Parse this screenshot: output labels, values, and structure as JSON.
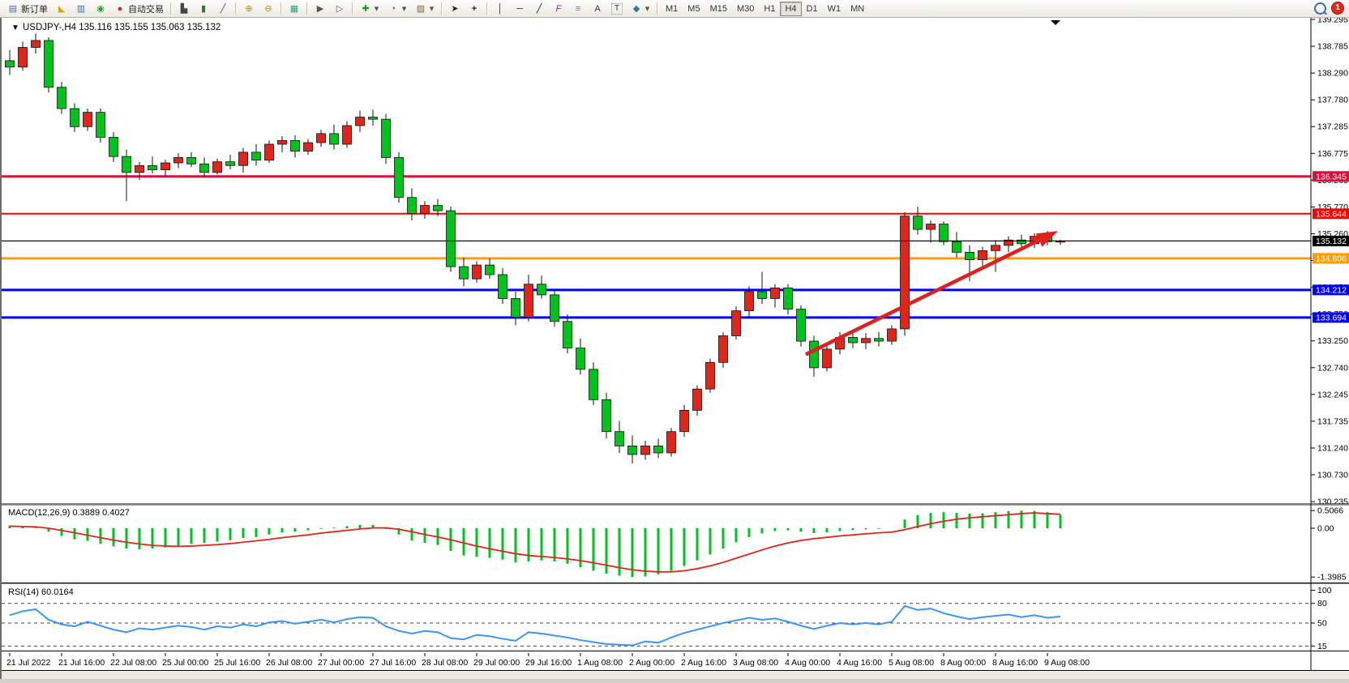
{
  "toolbar": {
    "new_order_label": "新订单",
    "autotrade_label": "自动交易",
    "timeframes": [
      "M1",
      "M5",
      "M15",
      "M30",
      "H1",
      "H4",
      "D1",
      "W1",
      "MN"
    ],
    "active_timeframe": "H4",
    "icons": {
      "new_order": "▤",
      "sound": "◣",
      "market_watch": "▥",
      "signal": "◉",
      "autotrade": "●",
      "chart_bars": "▙",
      "chart_candles": "▮",
      "chart_line": "╱",
      "zoom_in": "⊕",
      "zoom_out": "⊖",
      "tile_windows": "▦",
      "scroll_end": "▶",
      "chart_shift": "▷",
      "add_indicator": "✚",
      "period_menu": "◔",
      "template_menu": "▨",
      "cursor": "➤",
      "crosshair": "+",
      "vline": "│",
      "hline": "─",
      "trendline": "╱",
      "fibo": "F",
      "channels": "≡",
      "text": "A",
      "label": "T",
      "shapes_menu": "◆",
      "dropdown": "▾",
      "notify_badge": "1"
    }
  },
  "chart": {
    "title_symbol": "USDJPY-,H4",
    "title_ohlc": "135.116 135.155 135.063 135.132",
    "collapse_glyph": "▼"
  },
  "indicators": {
    "macd": {
      "label": "MACD(12,26,9)",
      "values": "0.3889 0.4027",
      "axis_ticks": [
        "0.5066",
        "0.00",
        "-1.3985"
      ]
    },
    "rsi": {
      "label": "RSI(14)",
      "value": "60.0164",
      "axis_ticks": [
        "100",
        "80",
        "50",
        "15"
      ],
      "levels": [
        80,
        50,
        15
      ]
    }
  },
  "chart_data": {
    "type": "candlestick",
    "symbol": "USDJPY-",
    "timeframe": "H4",
    "last_quote": {
      "open": 135.116,
      "high": 135.155,
      "low": 135.063,
      "close": 135.132
    },
    "price_axis_ticks": [
      139.295,
      138.785,
      138.29,
      137.78,
      137.285,
      136.775,
      136.265,
      135.77,
      135.26,
      134.765,
      134.25,
      133.75,
      133.25,
      132.74,
      132.245,
      131.735,
      131.24,
      130.73,
      130.235
    ],
    "price_range": [
      130.235,
      139.295
    ],
    "x_labels": [
      "21 Jul 2022",
      "21 Jul 16:00",
      "22 Jul 08:00",
      "25 Jul 00:00",
      "25 Jul 16:00",
      "26 Jul 08:00",
      "27 Jul 00:00",
      "27 Jul 16:00",
      "28 Jul 08:00",
      "29 Jul 00:00",
      "29 Jul 16:00",
      "1 Aug 08:00",
      "2 Aug 00:00",
      "2 Aug 16:00",
      "3 Aug 08:00",
      "4 Aug 00:00",
      "4 Aug 16:00",
      "5 Aug 08:00",
      "8 Aug 00:00",
      "8 Aug 16:00",
      "9 Aug 08:00"
    ],
    "x_label_every_n_candles": 4,
    "colors": {
      "bull": "#e1251b",
      "bear": "#00c41b",
      "outline": "#111111",
      "macd_hist": "#00c41b",
      "macd_signal": "#e1251b",
      "rsi_line": "#3b97f3",
      "arrow": "#e01f1f"
    },
    "hlines": [
      {
        "price": 136.345,
        "color": "#d8103f",
        "width": 3,
        "label": "136.345"
      },
      {
        "price": 135.644,
        "color": "#ff0000",
        "width": 2,
        "label": "135.644"
      },
      {
        "price": 135.132,
        "color": "#000000",
        "width": 1,
        "label": "135.132"
      },
      {
        "price": 134.806,
        "color": "#ff9d00",
        "width": 3,
        "label": "134.806"
      },
      {
        "price": 134.212,
        "color": "#0000ff",
        "width": 3,
        "label": "134.212"
      },
      {
        "price": 133.694,
        "color": "#0000ff",
        "width": 3,
        "label": "133.694"
      }
    ],
    "trend_arrow": {
      "from_price": 133.0,
      "from_candle": 62,
      "to_price": 135.32,
      "to_candle": 81
    },
    "candles": [
      [
        138.52,
        138.72,
        138.25,
        138.4
      ],
      [
        138.4,
        138.88,
        138.33,
        138.77
      ],
      [
        138.77,
        139.03,
        138.65,
        138.9
      ],
      [
        138.9,
        138.96,
        137.92,
        138.02
      ],
      [
        138.02,
        138.12,
        137.52,
        137.62
      ],
      [
        137.62,
        137.72,
        137.18,
        137.28
      ],
      [
        137.28,
        137.62,
        137.2,
        137.55
      ],
      [
        137.55,
        137.62,
        136.98,
        137.08
      ],
      [
        137.08,
        137.18,
        136.62,
        136.72
      ],
      [
        136.72,
        136.85,
        135.88,
        136.42
      ],
      [
        136.42,
        136.62,
        136.28,
        136.55
      ],
      [
        136.55,
        136.72,
        136.4,
        136.47
      ],
      [
        136.47,
        136.66,
        136.35,
        136.6
      ],
      [
        136.6,
        136.78,
        136.5,
        136.7
      ],
      [
        136.7,
        136.8,
        136.52,
        136.58
      ],
      [
        136.58,
        136.7,
        136.34,
        136.42
      ],
      [
        136.42,
        136.68,
        136.38,
        136.62
      ],
      [
        136.62,
        136.75,
        136.48,
        136.55
      ],
      [
        136.55,
        136.88,
        136.42,
        136.8
      ],
      [
        136.8,
        136.95,
        136.55,
        136.65
      ],
      [
        136.65,
        137.02,
        136.6,
        136.95
      ],
      [
        136.95,
        137.1,
        136.8,
        137.02
      ],
      [
        137.02,
        137.12,
        136.7,
        136.82
      ],
      [
        136.82,
        137.05,
        136.75,
        136.98
      ],
      [
        136.98,
        137.22,
        136.9,
        137.15
      ],
      [
        137.15,
        137.32,
        136.85,
        136.95
      ],
      [
        136.95,
        137.38,
        136.88,
        137.3
      ],
      [
        137.3,
        137.58,
        137.18,
        137.46
      ],
      [
        137.46,
        137.6,
        137.3,
        137.42
      ],
      [
        137.42,
        137.52,
        136.58,
        136.7
      ],
      [
        136.7,
        136.8,
        135.85,
        135.95
      ],
      [
        135.95,
        136.12,
        135.52,
        135.65
      ],
      [
        135.65,
        135.88,
        135.55,
        135.8
      ],
      [
        135.8,
        135.92,
        135.6,
        135.7
      ],
      [
        135.7,
        135.78,
        134.55,
        134.65
      ],
      [
        134.65,
        134.82,
        134.28,
        134.42
      ],
      [
        134.42,
        134.75,
        134.35,
        134.68
      ],
      [
        134.68,
        134.8,
        134.42,
        134.5
      ],
      [
        134.5,
        134.62,
        133.95,
        134.05
      ],
      [
        134.05,
        134.18,
        133.55,
        133.7
      ],
      [
        133.7,
        134.5,
        133.62,
        134.32
      ],
      [
        134.32,
        134.48,
        134.05,
        134.12
      ],
      [
        134.12,
        134.22,
        133.52,
        133.62
      ],
      [
        133.62,
        133.75,
        133.02,
        133.12
      ],
      [
        133.12,
        133.3,
        132.62,
        132.72
      ],
      [
        132.72,
        132.85,
        132.05,
        132.15
      ],
      [
        132.15,
        132.28,
        131.42,
        131.55
      ],
      [
        131.55,
        131.75,
        131.15,
        131.28
      ],
      [
        131.28,
        131.48,
        130.95,
        131.12
      ],
      [
        131.12,
        131.38,
        131.02,
        131.28
      ],
      [
        131.28,
        131.42,
        131.05,
        131.15
      ],
      [
        131.15,
        131.62,
        131.08,
        131.55
      ],
      [
        131.55,
        132.05,
        131.45,
        131.95
      ],
      [
        131.95,
        132.42,
        131.85,
        132.35
      ],
      [
        132.35,
        132.92,
        132.28,
        132.85
      ],
      [
        132.85,
        133.42,
        132.75,
        133.35
      ],
      [
        133.35,
        133.9,
        133.28,
        133.82
      ],
      [
        133.82,
        134.28,
        133.7,
        134.18
      ],
      [
        134.18,
        134.55,
        133.95,
        134.05
      ],
      [
        134.05,
        134.32,
        133.88,
        134.25
      ],
      [
        134.25,
        134.32,
        133.75,
        133.85
      ],
      [
        133.85,
        133.92,
        133.15,
        133.25
      ],
      [
        133.25,
        133.35,
        132.58,
        132.75
      ],
      [
        132.75,
        133.2,
        132.68,
        133.1
      ],
      [
        133.1,
        133.42,
        133.0,
        133.32
      ],
      [
        133.32,
        133.45,
        133.12,
        133.22
      ],
      [
        133.22,
        133.4,
        133.1,
        133.3
      ],
      [
        133.3,
        133.42,
        133.15,
        133.25
      ],
      [
        133.25,
        133.55,
        133.18,
        133.48
      ],
      [
        133.48,
        135.67,
        133.35,
        135.6
      ],
      [
        135.6,
        135.78,
        135.25,
        135.35
      ],
      [
        135.35,
        135.52,
        135.1,
        135.45
      ],
      [
        135.45,
        135.5,
        135.05,
        135.12
      ],
      [
        135.12,
        135.3,
        134.82,
        134.92
      ],
      [
        134.92,
        135.05,
        134.38,
        134.78
      ],
      [
        134.78,
        135.02,
        134.62,
        134.95
      ],
      [
        134.95,
        135.15,
        134.55,
        135.05
      ],
      [
        135.05,
        135.22,
        134.92,
        135.15
      ],
      [
        135.15,
        135.25,
        134.98,
        135.08
      ],
      [
        135.08,
        135.28,
        135.0,
        135.22
      ],
      [
        135.22,
        135.32,
        135.05,
        135.12
      ],
      [
        135.116,
        135.155,
        135.063,
        135.132
      ]
    ],
    "macd_main": [
      0.08,
      0.05,
      0.02,
      -0.1,
      -0.22,
      -0.32,
      -0.36,
      -0.44,
      -0.52,
      -0.58,
      -0.6,
      -0.58,
      -0.55,
      -0.5,
      -0.45,
      -0.42,
      -0.38,
      -0.34,
      -0.28,
      -0.25,
      -0.18,
      -0.12,
      -0.1,
      -0.06,
      -0.02,
      0.02,
      0.06,
      0.1,
      0.1,
      -0.02,
      -0.18,
      -0.35,
      -0.42,
      -0.48,
      -0.65,
      -0.78,
      -0.82,
      -0.85,
      -0.9,
      -0.98,
      -0.95,
      -0.92,
      -0.95,
      -1.02,
      -1.12,
      -1.22,
      -1.3,
      -1.36,
      -1.4,
      -1.38,
      -1.32,
      -1.22,
      -1.08,
      -0.92,
      -0.75,
      -0.58,
      -0.4,
      -0.25,
      -0.15,
      -0.08,
      -0.06,
      -0.1,
      -0.14,
      -0.12,
      -0.08,
      -0.05,
      -0.03,
      -0.02,
      0.0,
      0.25,
      0.38,
      0.44,
      0.46,
      0.44,
      0.42,
      0.43,
      0.46,
      0.49,
      0.5066,
      0.5,
      0.46,
      0.3889
    ],
    "macd_signal": [
      0.06,
      0.05,
      0.04,
      0.0,
      -0.06,
      -0.13,
      -0.2,
      -0.27,
      -0.34,
      -0.4,
      -0.45,
      -0.49,
      -0.51,
      -0.52,
      -0.51,
      -0.49,
      -0.47,
      -0.44,
      -0.4,
      -0.36,
      -0.32,
      -0.27,
      -0.23,
      -0.19,
      -0.14,
      -0.1,
      -0.06,
      -0.02,
      0.01,
      0.01,
      -0.03,
      -0.1,
      -0.18,
      -0.25,
      -0.33,
      -0.42,
      -0.51,
      -0.59,
      -0.66,
      -0.73,
      -0.78,
      -0.81,
      -0.84,
      -0.88,
      -0.93,
      -0.99,
      -1.06,
      -1.13,
      -1.19,
      -1.23,
      -1.25,
      -1.25,
      -1.22,
      -1.16,
      -1.08,
      -0.98,
      -0.86,
      -0.74,
      -0.62,
      -0.51,
      -0.42,
      -0.35,
      -0.3,
      -0.26,
      -0.22,
      -0.19,
      -0.16,
      -0.13,
      -0.11,
      -0.04,
      0.05,
      0.13,
      0.2,
      0.26,
      0.3,
      0.33,
      0.36,
      0.39,
      0.42,
      0.44,
      0.42,
      0.4027
    ],
    "rsi": [
      62,
      68,
      71,
      55,
      48,
      45,
      52,
      46,
      40,
      36,
      42,
      40,
      43,
      46,
      44,
      40,
      45,
      43,
      48,
      45,
      51,
      53,
      49,
      52,
      55,
      51,
      56,
      59,
      58,
      45,
      38,
      34,
      38,
      36,
      27,
      25,
      32,
      30,
      26,
      23,
      36,
      34,
      31,
      28,
      24,
      21,
      18,
      17,
      16,
      22,
      20,
      28,
      35,
      40,
      45,
      50,
      54,
      58,
      55,
      57,
      52,
      46,
      41,
      46,
      50,
      48,
      50,
      48,
      52,
      76,
      70,
      72,
      65,
      60,
      56,
      59,
      61,
      63,
      59,
      62,
      58,
      60.0164
    ],
    "macd_range": [
      -1.3985,
      0.5066
    ],
    "rsi_range": [
      0,
      100
    ]
  }
}
